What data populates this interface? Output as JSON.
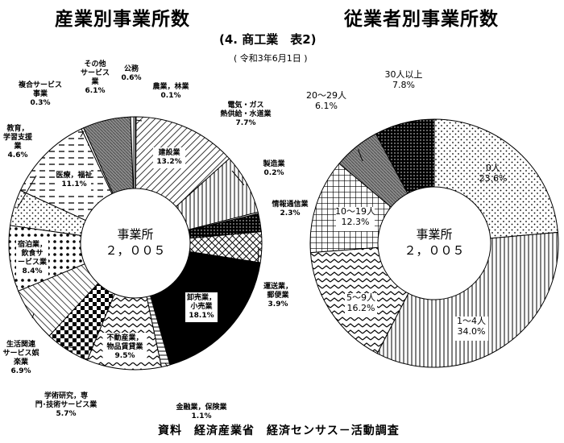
{
  "header": {
    "title_left": "産業別事業所数",
    "title_right": "従業者別事業所数",
    "subtitle": "(4. 商工業　表2)",
    "date": "( 令和3年6月1日 )"
  },
  "source": "資料　経済産業省　経済センサス－活動調査",
  "chart_data": [
    {
      "type": "pie",
      "title": "産業別事業所数",
      "center_label": "事業所",
      "center_value": "２，００５",
      "unit": "%",
      "slices": [
        {
          "name": "農業，林業",
          "value": 0.1,
          "label": "0.1%"
        },
        {
          "name": "建設業",
          "value": 13.2,
          "label": "13.2%"
        },
        {
          "name": "電気・ガス熱供給・水道業",
          "value": 7.7,
          "label": "7.7%"
        },
        {
          "name": "製造業",
          "value": 0.2,
          "label": "0.2%"
        },
        {
          "name": "情報通信業",
          "value": 2.3,
          "label": "2.3%"
        },
        {
          "name": "運送業，郵便業",
          "value": 3.9,
          "label": "3.9%"
        },
        {
          "name": "卸売業，小売業",
          "value": 18.1,
          "label": "18.1%"
        },
        {
          "name": "金融業，保険業",
          "value": 1.1,
          "label": "1.1%"
        },
        {
          "name": "不動産業，物品賃貸業",
          "value": 9.5,
          "label": "9.5%"
        },
        {
          "name": "学術研究，専門･技術サービス業",
          "value": 5.7,
          "label": "5.7%"
        },
        {
          "name": "生活関連サービス娯楽業",
          "value": 6.9,
          "label": "6.9%"
        },
        {
          "name": "宿泊業，飲食サービス業",
          "value": 8.4,
          "label": "8.4%"
        },
        {
          "name": "教育，学習支援業",
          "value": 4.6,
          "label": "4.6%"
        },
        {
          "name": "医療，福祉",
          "value": 11.1,
          "label": "11.1%"
        },
        {
          "name": "複合サービス事業",
          "value": 0.3,
          "label": "0.3%"
        },
        {
          "name": "その他サービス業",
          "value": 6.1,
          "label": "6.1%"
        },
        {
          "name": "公務",
          "value": 0.6,
          "label": "0.6%"
        }
      ]
    },
    {
      "type": "pie",
      "title": "従業者別事業所数",
      "center_label": "事業所",
      "center_value": "２，００５",
      "unit": "%",
      "slices": [
        {
          "name": "0人",
          "value": 23.6,
          "label": "23.6%"
        },
        {
          "name": "1～4人",
          "value": 34.0,
          "label": "34.0%"
        },
        {
          "name": "5～9人",
          "value": 16.2,
          "label": "16.2%"
        },
        {
          "name": "10～19人",
          "value": 12.3,
          "label": "12.3%"
        },
        {
          "name": "20～29人",
          "value": 6.1,
          "label": "6.1%"
        },
        {
          "name": "30人以上",
          "value": 7.8,
          "label": "7.8%"
        }
      ]
    }
  ]
}
